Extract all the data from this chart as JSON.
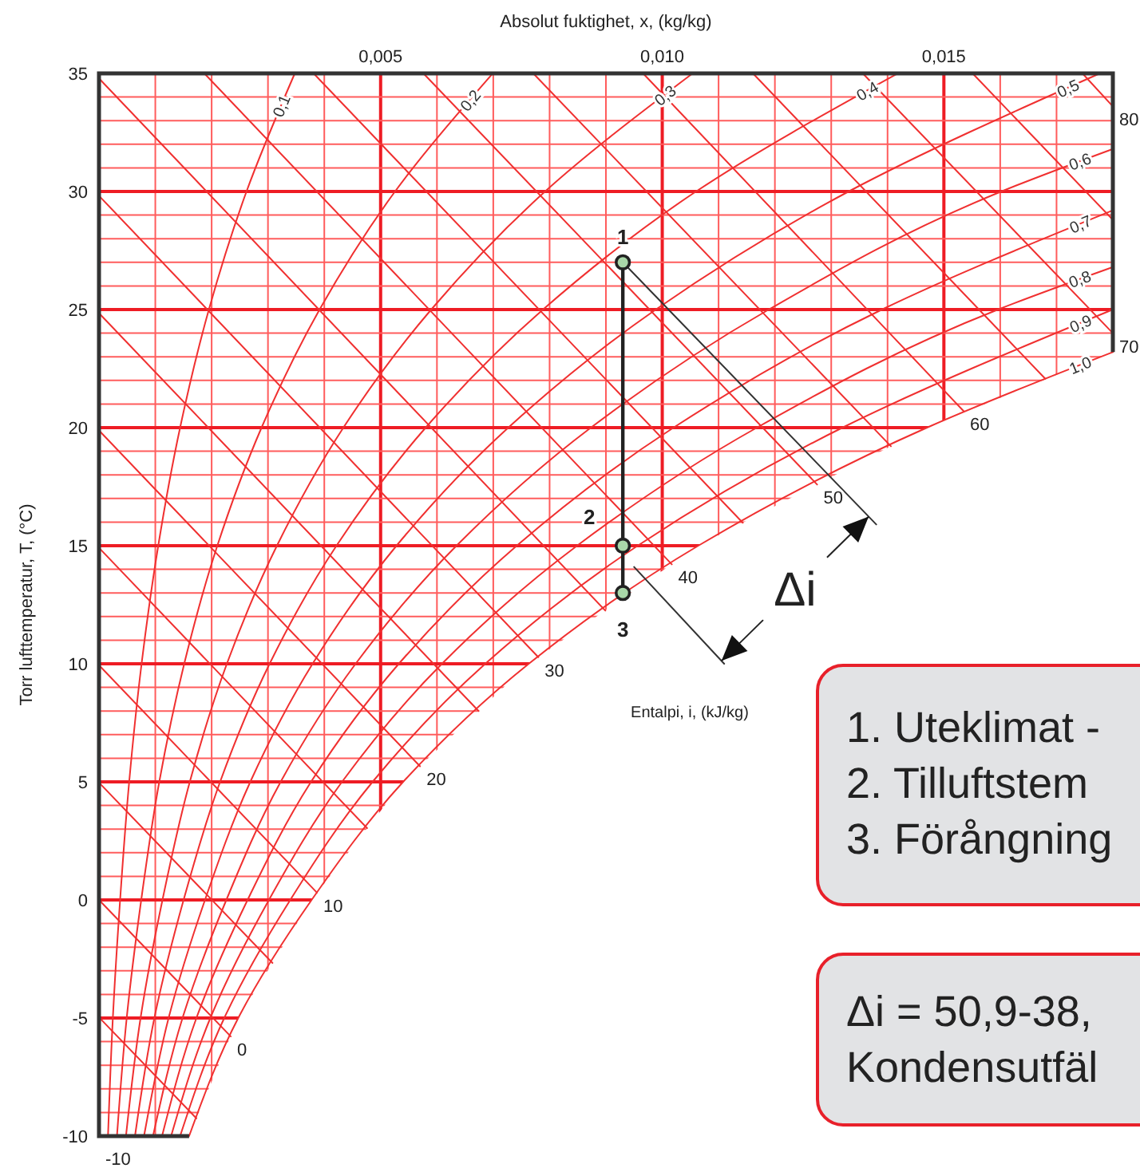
{
  "chart_data": {
    "type": "line",
    "xlabel": "Absolut fuktighet, x, (kg/kg)",
    "ylabel": "Torr lufttemperatur, T, (°C)",
    "xlim": [
      0,
      0.018
    ],
    "ylim": [
      -10,
      35
    ],
    "grid": true,
    "xticks": [
      {
        "value": 0.001,
        "label": null
      },
      {
        "value": 0.002,
        "label": null
      },
      {
        "value": 0.003,
        "label": null
      },
      {
        "value": 0.004,
        "label": null
      },
      {
        "value": 0.005,
        "label": "0,005"
      },
      {
        "value": 0.006,
        "label": null
      },
      {
        "value": 0.007,
        "label": null
      },
      {
        "value": 0.008,
        "label": null
      },
      {
        "value": 0.009,
        "label": null
      },
      {
        "value": 0.01,
        "label": "0,010"
      },
      {
        "value": 0.011,
        "label": null
      },
      {
        "value": 0.012,
        "label": null
      },
      {
        "value": 0.013,
        "label": null
      },
      {
        "value": 0.014,
        "label": null
      },
      {
        "value": 0.015,
        "label": "0,015"
      },
      {
        "value": 0.016,
        "label": null
      },
      {
        "value": 0.017,
        "label": null
      }
    ],
    "yticks": [
      -10,
      {
        "value": -9,
        "label": null
      },
      {
        "value": -8,
        "label": null
      },
      {
        "value": -7,
        "label": null
      },
      {
        "value": -6,
        "label": null
      },
      -5,
      {
        "value": -4,
        "label": null
      },
      {
        "value": -3,
        "label": null
      },
      {
        "value": -2,
        "label": null
      },
      {
        "value": -1,
        "label": null
      },
      0,
      {
        "value": 1,
        "label": null
      },
      {
        "value": 2,
        "label": null
      },
      {
        "value": 3,
        "label": null
      },
      {
        "value": 4,
        "label": null
      },
      5,
      {
        "value": 6,
        "label": null
      },
      {
        "value": 7,
        "label": null
      },
      {
        "value": 8,
        "label": null
      },
      {
        "value": 9,
        "label": null
      },
      10,
      {
        "value": 11,
        "label": null
      },
      {
        "value": 12,
        "label": null
      },
      {
        "value": 13,
        "label": null
      },
      {
        "value": 14,
        "label": null
      },
      15,
      {
        "value": 16,
        "label": null
      },
      {
        "value": 17,
        "label": null
      },
      {
        "value": 18,
        "label": null
      },
      {
        "value": 19,
        "label": null
      },
      20,
      {
        "value": 21,
        "label": null
      },
      {
        "value": 22,
        "label": null
      },
      {
        "value": 23,
        "label": null
      },
      {
        "value": 24,
        "label": null
      },
      25,
      {
        "value": 26,
        "label": null
      },
      {
        "value": 27,
        "label": null
      },
      {
        "value": 28,
        "label": null
      },
      {
        "value": 29,
        "label": null
      },
      30,
      {
        "value": 31,
        "label": null
      },
      {
        "value": 32,
        "label": null
      },
      {
        "value": 33,
        "label": null
      },
      {
        "value": 34,
        "label": null
      },
      35
    ],
    "series": [
      {
        "name": "0,1",
        "color": "#f03030",
        "x": [
          0.00016,
          0.000246,
          0.000375,
          0.000536,
          0.000756,
          0.001052,
          0.00144,
          0.001951,
          0.002619,
          0.003476
        ],
        "values": [
          -10,
          -5,
          0,
          5,
          10,
          15,
          20,
          25,
          30,
          35
        ]
      },
      {
        "name": "0,2",
        "color": "#f03030",
        "x": [
          0.000319,
          0.000492,
          0.00075,
          0.00107,
          0.001513,
          0.002101,
          0.002886,
          0.003916,
          0.005256,
          0.00699
        ],
        "values": [
          -10,
          -5,
          0,
          5,
          10,
          15,
          20,
          25,
          30,
          35
        ]
      },
      {
        "name": "0,3",
        "color": "#f03030",
        "x": [
          0.000479,
          0.000738,
          0.001127,
          0.001612,
          0.00227,
          0.003159,
          0.004339,
          0.005898,
          0.00792,
          0.01054
        ],
        "values": [
          -10,
          -5,
          0,
          5,
          10,
          15,
          20,
          25,
          30,
          35
        ]
      },
      {
        "name": "0,4",
        "color": "#f03030",
        "x": [
          0.000639,
          0.000983,
          0.001502,
          0.00215,
          0.003029,
          0.004216,
          0.0058,
          0.007882,
          0.0106,
          0.01418
        ],
        "values": [
          -10,
          -5,
          0,
          5,
          10,
          15,
          20,
          25,
          30,
          35
        ]
      },
      {
        "name": "0,5",
        "color": "#f03030",
        "x": [
          0.000799,
          0.001236,
          0.001882,
          0.002686,
          0.003792,
          0.005282,
          0.007267,
          0.009885,
          0.01331,
          0.01777
        ],
        "values": [
          -10,
          -5,
          0,
          5,
          10,
          15,
          20,
          25,
          30,
          35
        ]
      },
      {
        "name": "0,6",
        "color": "#f03030",
        "x": [
          0.000959,
          0.001483,
          0.002261,
          0.003225,
          0.004556,
          0.006347,
          0.008733,
          0.01189,
          0.01602,
          0.018
        ],
        "values": [
          -10,
          -5,
          0,
          5,
          10,
          15,
          20,
          25,
          30,
          31.8
        ]
      },
      {
        "name": "0,7",
        "color": "#f03030",
        "x": [
          0.001119,
          0.00173,
          0.002638,
          0.003764,
          0.005323,
          0.007417,
          0.0102,
          0.0139,
          0.018
        ],
        "values": [
          -10,
          -5,
          0,
          5,
          10,
          15,
          20,
          25,
          29.2
        ]
      },
      {
        "name": "0,8",
        "color": "#f03030",
        "x": [
          0.00128,
          0.001977,
          0.003017,
          0.004314,
          0.006088,
          0.008488,
          0.01168,
          0.01596,
          0.018
        ],
        "values": [
          -10,
          -5,
          0,
          5,
          10,
          15,
          20,
          25,
          26.8
        ]
      },
      {
        "name": "0,9",
        "color": "#f03030",
        "x": [
          0.00144,
          0.002224,
          0.003396,
          0.004857,
          0.006858,
          0.009564,
          0.0132,
          0.018
        ],
        "values": [
          -10,
          -5,
          0,
          5,
          10,
          15,
          20,
          25
        ]
      },
      {
        "name": "1,0",
        "color": "#f03030",
        "x": [
          0.0016,
          0.002472,
          0.003775,
          0.0054,
          0.00763,
          0.01064,
          0.0147,
          0.018
        ],
        "values": [
          -10,
          -5,
          0,
          5,
          10,
          15,
          20,
          23.2
        ]
      },
      {
        "color": "#f03030",
        "x": [
          0,
          0.00173
        ],
        "values": [
          -4.97,
          -9.25
        ]
      },
      {
        "name": "0",
        "color": "#f03030",
        "x": [
          0,
          0.00234
        ],
        "values": [
          0,
          -5.78
        ]
      },
      {
        "color": "#f03030",
        "x": [
          0,
          0.00308
        ],
        "values": [
          4.97,
          -2.67
        ]
      },
      {
        "name": "10",
        "color": "#f03030",
        "x": [
          0,
          0.00387
        ],
        "values": [
          9.94,
          0.31
        ]
      },
      {
        "color": "#f03030",
        "x": [
          0,
          0.00476
        ],
        "values": [
          14.91,
          3.04
        ]
      },
      {
        "name": "20",
        "color": "#f03030",
        "x": [
          0,
          0.0057
        ],
        "values": [
          19.88,
          5.66
        ]
      },
      {
        "color": "#f03030",
        "x": [
          0,
          0.00674
        ],
        "values": [
          24.85,
          8
        ]
      },
      {
        "name": "30",
        "color": "#f03030",
        "x": [
          0,
          0.0078
        ],
        "values": [
          29.82,
          10.28
        ]
      },
      {
        "color": "#f03030",
        "x": [
          0,
          0.00899
        ],
        "values": [
          34.79,
          12.25
        ]
      },
      {
        "name": "40",
        "color": "#f03030",
        "x": [
          0.00187,
          0.01017
        ],
        "values": [
          35,
          14.21
        ]
      },
      {
        "color": "#f03030",
        "x": [
          0.00381,
          0.01143
        ],
        "values": [
          35,
          15.97
        ]
      },
      {
        "name": "50",
        "color": "#f03030",
        "x": [
          0.00576,
          0.01275
        ],
        "values": [
          35,
          17.59
        ]
      },
      {
        "color": "#f03030",
        "x": [
          0.00771,
          0.01406
        ],
        "values": [
          35,
          19.21
        ]
      },
      {
        "name": "60",
        "color": "#f03030",
        "x": [
          0.00966,
          0.01535
        ],
        "values": [
          35,
          20.7
        ]
      },
      {
        "color": "#f03030",
        "x": [
          0.01161,
          0.0168
        ],
        "values": [
          35,
          22.07
        ]
      },
      {
        "name": "70",
        "color": "#f03030",
        "x": [
          0.01356,
          0.018
        ],
        "values": [
          35,
          24
        ]
      },
      {
        "color": "#f03030",
        "x": [
          0.01551,
          0.018
        ],
        "values": [
          35,
          28.8
        ]
      },
      {
        "name": "80",
        "color": "#f03030",
        "x": [
          0.01746,
          0.018
        ],
        "values": [
          35,
          33.6
        ]
      },
      {
        "color": "#333333",
        "x": [
          0.0093,
          0.0138
        ],
        "values": [
          27,
          15.9
        ]
      },
      {
        "color": "#333333",
        "x": [
          0.0095,
          0.0111
        ],
        "values": [
          14.1,
          10
        ]
      },
      {
        "color": "#222222",
        "marker": "circle",
        "x": [
          0.0093,
          0.0093,
          0.0093
        ],
        "values": [
          27,
          15,
          13
        ]
      }
    ],
    "annotations": [
      "1",
      "2",
      "3",
      "Δi",
      "Entalpi, i, (kJ/kg)",
      "-10",
      "1. Uteklimat -\n2. Tilluftstem\n3. Förångning",
      "Δi = 50,9-38,\nKondensutfäl"
    ]
  }
}
